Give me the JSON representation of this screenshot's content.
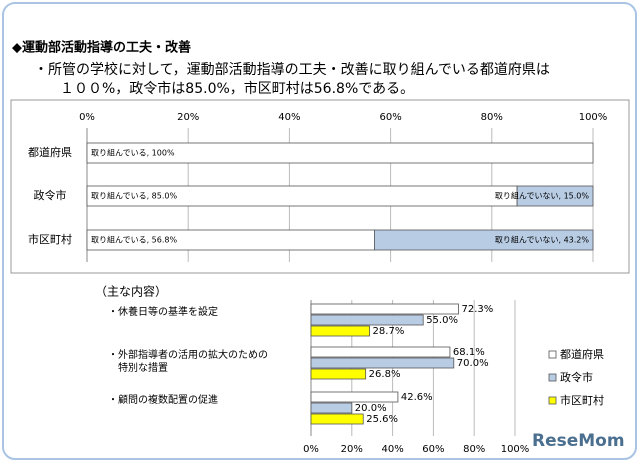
{
  "header": {
    "title": "◆運動部活動指導の工夫・改善",
    "lines": [
      "・所管の学校に対して，運動部活動指導の工夫・改善に取り組んでいる都道府県は",
      "１００%，政令市は85.0%，市区町村は56.8%である。"
    ]
  },
  "watermark": "ReseMom",
  "chart_data": [
    {
      "type": "bar",
      "orientation": "horizontal",
      "stacked": true,
      "categories": [
        "都道府県",
        "政令市",
        "市区町村"
      ],
      "series": [
        {
          "color": "#ffffff",
          "values": [
            100,
            85.0,
            56.8
          ],
          "value_labels": [
            "取り組んでいる, 100%",
            "取り組んでいる, 85.0%",
            "取り組んでいる, 56.8%"
          ]
        },
        {
          "color": "#b8cce4",
          "values": [
            null,
            15.0,
            43.2
          ],
          "value_labels": [
            null,
            "取り組んでいない, 15.0%",
            "取り組んでいない, 43.2%"
          ]
        }
      ],
      "xlim": [
        0,
        100
      ],
      "xticks": [
        {
          "value": 0,
          "label": "0%"
        },
        {
          "value": 20,
          "label": "20%"
        },
        {
          "value": 40,
          "label": "40%"
        },
        {
          "value": 60,
          "label": "60%"
        },
        {
          "value": 80,
          "label": "80%"
        },
        {
          "value": 100,
          "label": "100%"
        }
      ],
      "grid": true
    },
    {
      "type": "bar",
      "orientation": "horizontal",
      "stacked": false,
      "title": "（主な内容）",
      "categories": [
        "・休養日等の基準を設定",
        "・外部指導者の活用の拡大のための\n　特別な措置",
        "・顧問の複数配置の促進"
      ],
      "series": [
        {
          "name": "都道府県",
          "color": "#ffffff",
          "values": [
            72.3,
            68.1,
            42.6
          ],
          "value_labels": [
            "72.3%",
            "68.1%",
            "42.6%"
          ]
        },
        {
          "name": "政令市",
          "color": "#b8cce4",
          "values": [
            55.0,
            70.0,
            20.0
          ],
          "value_labels": [
            "55.0%",
            "70.0%",
            "20.0%"
          ]
        },
        {
          "name": "市区町村",
          "color": "#ffff00",
          "values": [
            28.7,
            26.8,
            25.6
          ],
          "value_labels": [
            "28.7%",
            "26.8%",
            "25.6%"
          ]
        }
      ],
      "xlim": [
        0,
        100
      ],
      "xticks": [
        {
          "value": 0,
          "label": "0%"
        },
        {
          "value": 20,
          "label": "20%"
        },
        {
          "value": 40,
          "label": "40%"
        },
        {
          "value": 60,
          "label": "60%"
        },
        {
          "value": 80,
          "label": "80%"
        },
        {
          "value": 100,
          "label": "100%"
        }
      ],
      "grid": true,
      "legend": "right"
    }
  ]
}
